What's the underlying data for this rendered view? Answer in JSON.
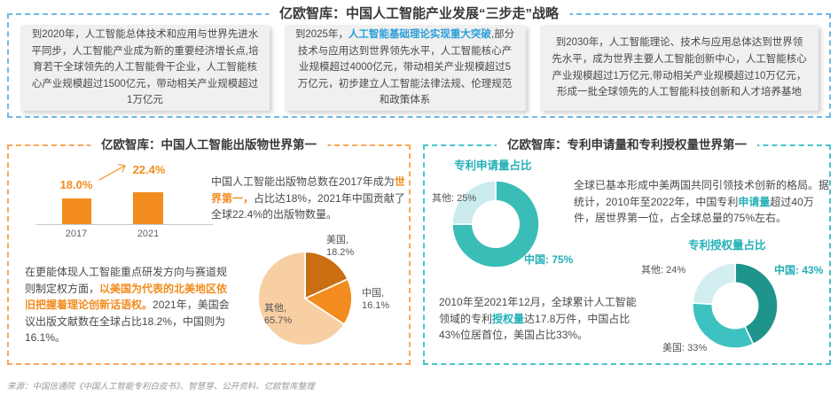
{
  "colors": {
    "panel_top_border": "#6FB9E7",
    "panel_left_border": "#F7A85C",
    "panel_right_border": "#4AC4CA",
    "blue_accent": "#2B9FD9",
    "orange_accent": "#F28C1E",
    "teal_accent": "#22B0B6"
  },
  "top_panel": {
    "title": "亿欧智库：中国人工智能产业发展“三步走”战略",
    "boxes": [
      {
        "pre": "到2020年，人工智能总体技术和应用与世界先进水平同步，人工智能产业成为新的重要经济增长点,培育若干全球领先的人工智能骨干企业，人工智能核心产业规模超过1500亿元，带动相关产业规模超过1万亿元",
        "highlight": "",
        "post": ""
      },
      {
        "pre": "到2025年，",
        "highlight": "人工智能基础理论实现重大突破",
        "post": ",部分技术与应用达到世界领先水平，人工智能核心产业规模超过4000亿元，带动相关产业规模超过5万亿元，初步建立人工智能法律法规、伦理规范和政策体系"
      },
      {
        "pre": "到2030年，人工智能理论、技术与应用总体达到世界领先水平，成为世界主要人工智能创新中心，人工智能核心产业规模超过1万亿元,带动相关产业规模超过10万亿元，形成一批全球领先的人工智能科技创新和人才培养基地",
        "highlight": "",
        "post": ""
      }
    ]
  },
  "left_panel": {
    "title": "亿欧智库：中国人工智能出版物世界第一",
    "para1": {
      "pre": "中国人工智能出版物总数在2017年成为",
      "highlight": "世界第一，",
      "post": "占比达18%，2021年中国贡献了全球22.4%的出版物数量。"
    },
    "para2": {
      "pre": "在更能体现人工智能重点研发方向与赛道规则制定权方面，",
      "highlight": "以美国为代表的北美地区依旧把握着理论创新话语权。",
      "post": "2021年，美国会议出版文献数在全球占比18.2%，中国则为16.1%。"
    }
  },
  "right_panel": {
    "title": "亿欧智库：专利申请量和专利授权量世界第一",
    "para1": {
      "pre": "全球已基本形成中美两国共同引领技术创新的格局。据统计，2010年至2022年，中国专利",
      "highlight": "申请量",
      "post": "超过40万件，居世界第一位，占全球总量的75%左右。"
    },
    "para2": {
      "pre": "2010年至2021年12月，全球累计人工智能领域的专利",
      "highlight": "授权量",
      "post": "达17.8万件，中国占比43%位居首位，美国占比33%。"
    }
  },
  "source_note": "来源：中国信通院《中国人工智能专利白皮书》、智慧芽、公开资料、亿欧智库整理",
  "chart_data": [
    {
      "id": "china-ai-publications-share",
      "type": "bar",
      "categories": [
        "2017",
        "2021"
      ],
      "values": [
        18.0,
        22.4
      ],
      "value_labels": [
        "18.0%",
        "22.4%"
      ],
      "unit": "%",
      "bar_color": "#F28C1E",
      "ylim": [
        0,
        25
      ],
      "grid": false
    },
    {
      "id": "conference-publications-2021-pie",
      "type": "pie",
      "start_angle": 0,
      "clockwise": true,
      "inner_ratio": 0,
      "slices": [
        {
          "name": "美国",
          "value": 18.2,
          "color": "#C96F12",
          "display": [
            "美国,",
            "18.2%"
          ]
        },
        {
          "name": "中国",
          "value": 16.1,
          "color": "#F28C1E",
          "display": [
            "中国,",
            "16.1%"
          ]
        },
        {
          "name": "其他",
          "value": 65.7,
          "color": "#F8CFA3",
          "display": [
            "其他,",
            "65.7%"
          ]
        }
      ]
    },
    {
      "id": "patent-applications-share",
      "type": "donut",
      "title": "专利申请量占比",
      "start_angle": 0,
      "clockwise": true,
      "inner_ratio": 0.55,
      "slices": [
        {
          "name": "中国",
          "value": 75,
          "color": "#3ABDB6",
          "display": [
            "中国: 75%"
          ]
        },
        {
          "name": "其他",
          "value": 25,
          "color": "#CBEBED",
          "display": [
            "其他: 25%"
          ]
        }
      ]
    },
    {
      "id": "patent-grants-share",
      "type": "donut",
      "title": "专利授权量占比",
      "start_angle": 0,
      "clockwise": true,
      "inner_ratio": 0.55,
      "slices": [
        {
          "name": "中国",
          "value": 43,
          "color": "#1F948B",
          "display": [
            "中国: 43%"
          ]
        },
        {
          "name": "美国",
          "value": 33,
          "color": "#3EC1C1",
          "display": [
            "美国: 33%"
          ]
        },
        {
          "name": "其他",
          "value": 24,
          "color": "#D2EEF1",
          "display": [
            "其他: 24%"
          ]
        }
      ]
    }
  ]
}
